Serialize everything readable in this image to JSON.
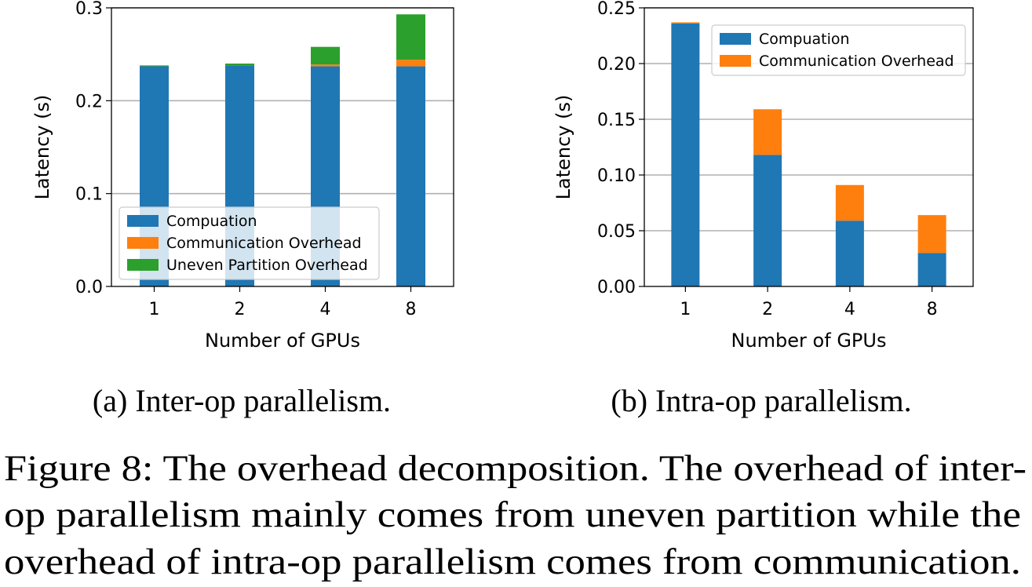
{
  "chart_data": [
    {
      "type": "bar",
      "stacked": true,
      "categories": [
        "1",
        "2",
        "4",
        "8"
      ],
      "series": [
        {
          "name": "Compuation",
          "values": [
            0.237,
            0.238,
            0.237,
            0.237
          ],
          "color": "#1f77b4"
        },
        {
          "name": "Communication Overhead",
          "values": [
            0.0,
            0.0,
            0.002,
            0.007
          ],
          "color": "#ff7f0e"
        },
        {
          "name": "Uneven Partition Overhead",
          "values": [
            0.001,
            0.002,
            0.019,
            0.049
          ],
          "color": "#2ca02c"
        }
      ],
      "xlabel": "Number of GPUs",
      "ylabel": "Latency (s)",
      "ylim": [
        0,
        0.3
      ],
      "yticks": [
        "0.0",
        "0.1",
        "0.2",
        "0.3"
      ],
      "ytick_values": [
        0,
        0.1,
        0.2,
        0.3
      ],
      "grid": "y",
      "legend_position": "lower-left",
      "subcaption": "(a) Inter-op parallelism."
    },
    {
      "type": "bar",
      "stacked": true,
      "categories": [
        "1",
        "2",
        "4",
        "8"
      ],
      "series": [
        {
          "name": "Compuation",
          "values": [
            0.236,
            0.118,
            0.059,
            0.03
          ],
          "color": "#1f77b4"
        },
        {
          "name": "Communication Overhead",
          "values": [
            0.001,
            0.041,
            0.032,
            0.034
          ],
          "color": "#ff7f0e"
        }
      ],
      "xlabel": "Number of GPUs",
      "ylabel": "Latency (s)",
      "ylim": [
        0,
        0.25
      ],
      "yticks": [
        "0.00",
        "0.05",
        "0.10",
        "0.15",
        "0.20",
        "0.25"
      ],
      "ytick_values": [
        0,
        0.05,
        0.1,
        0.15,
        0.2,
        0.25
      ],
      "grid": "y",
      "legend_position": "upper-right",
      "subcaption": "(b) Intra-op parallelism."
    }
  ],
  "caption": [
    "Figure 8: The overhead decomposition. The overhead of inter-",
    "op parallelism mainly comes from uneven partition while the",
    "overhead of intra-op parallelism comes from communication."
  ]
}
